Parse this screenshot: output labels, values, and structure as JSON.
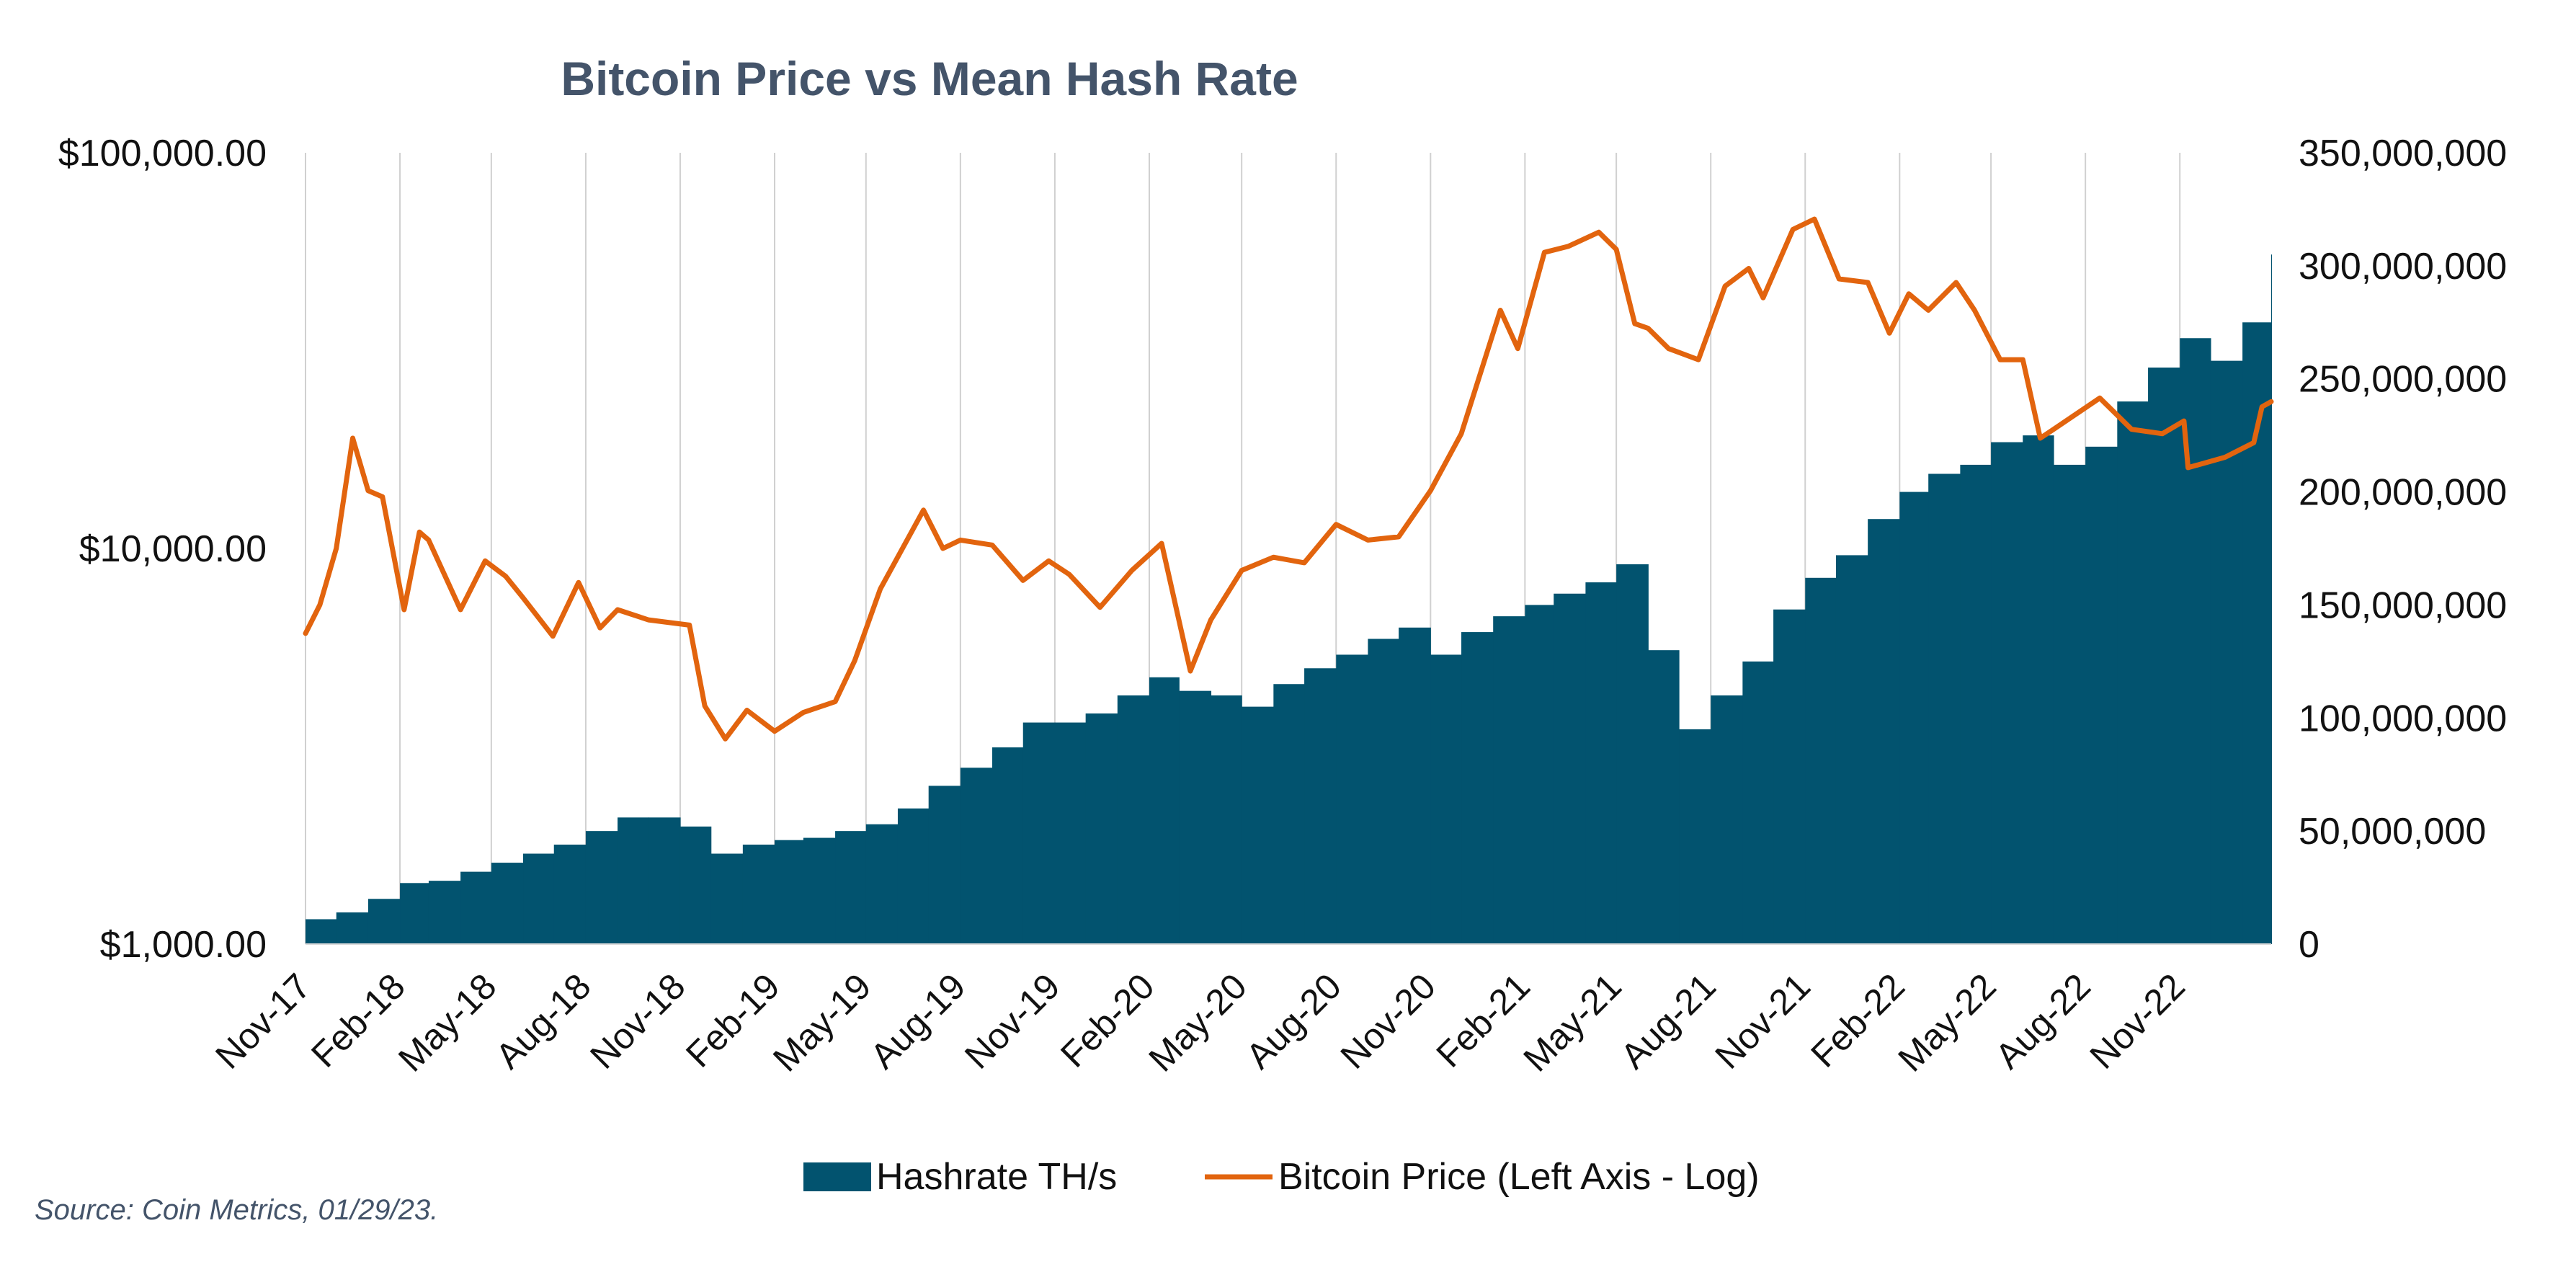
{
  "chart_data": {
    "type": "bar+line",
    "title": "Bitcoin Price vs Mean Hash Rate",
    "source": "Source: Coin Metrics, 01/29/23.",
    "x_ticks": [
      "Nov-17",
      "Feb-18",
      "May-18",
      "Aug-18",
      "Nov-18",
      "Feb-19",
      "May-19",
      "Aug-19",
      "Nov-19",
      "Feb-20",
      "May-20",
      "Aug-20",
      "Nov-20",
      "Feb-21",
      "May-21",
      "Aug-21",
      "Nov-21",
      "Feb-22",
      "May-22",
      "Aug-22",
      "Nov-22"
    ],
    "x_range": [
      "2017-11-01",
      "2023-01-29"
    ],
    "y_left": {
      "scale": "log",
      "range": [
        1000,
        100000
      ],
      "ticks": [
        1000,
        10000,
        100000
      ],
      "tick_labels": [
        "$1,000.00",
        "$10,000.00",
        "$100,000.00"
      ]
    },
    "y_right": {
      "scale": "linear",
      "range": [
        0,
        350000000
      ],
      "ticks": [
        0,
        50000000,
        100000000,
        150000000,
        200000000,
        250000000,
        300000000,
        350000000
      ],
      "tick_labels": [
        "0",
        "50,000,000",
        "100,000,000",
        "150,000,000",
        "200,000,000",
        "250,000,000",
        "300,000,000",
        "350,000,000"
      ]
    },
    "grid": "vertical",
    "legend_position": "bottom",
    "series": [
      {
        "name": "Hashrate TH/s",
        "type": "bar",
        "axis": "right",
        "color": "#02536f",
        "points": [
          [
            "2017-11-01",
            11000000
          ],
          [
            "2017-12-01",
            14000000
          ],
          [
            "2018-01-01",
            20000000
          ],
          [
            "2018-02-01",
            27000000
          ],
          [
            "2018-03-01",
            28000000
          ],
          [
            "2018-04-01",
            32000000
          ],
          [
            "2018-05-01",
            36000000
          ],
          [
            "2018-06-01",
            40000000
          ],
          [
            "2018-07-01",
            44000000
          ],
          [
            "2018-08-01",
            50000000
          ],
          [
            "2018-09-01",
            56000000
          ],
          [
            "2018-10-01",
            56000000
          ],
          [
            "2018-11-01",
            52000000
          ],
          [
            "2018-12-01",
            40000000
          ],
          [
            "2019-01-01",
            44000000
          ],
          [
            "2019-02-01",
            46000000
          ],
          [
            "2019-03-01",
            47000000
          ],
          [
            "2019-04-01",
            50000000
          ],
          [
            "2019-05-01",
            53000000
          ],
          [
            "2019-06-01",
            60000000
          ],
          [
            "2019-07-01",
            70000000
          ],
          [
            "2019-08-01",
            78000000
          ],
          [
            "2019-09-01",
            87000000
          ],
          [
            "2019-10-01",
            98000000
          ],
          [
            "2019-11-01",
            98000000
          ],
          [
            "2019-12-01",
            102000000
          ],
          [
            "2020-01-01",
            110000000
          ],
          [
            "2020-02-01",
            118000000
          ],
          [
            "2020-03-01",
            112000000
          ],
          [
            "2020-04-01",
            110000000
          ],
          [
            "2020-05-01",
            105000000
          ],
          [
            "2020-06-01",
            115000000
          ],
          [
            "2020-07-01",
            122000000
          ],
          [
            "2020-08-01",
            128000000
          ],
          [
            "2020-09-01",
            135000000
          ],
          [
            "2020-10-01",
            140000000
          ],
          [
            "2020-11-01",
            128000000
          ],
          [
            "2020-12-01",
            138000000
          ],
          [
            "2021-01-01",
            145000000
          ],
          [
            "2021-02-01",
            150000000
          ],
          [
            "2021-03-01",
            155000000
          ],
          [
            "2021-04-01",
            160000000
          ],
          [
            "2021-05-01",
            168000000
          ],
          [
            "2021-06-01",
            130000000
          ],
          [
            "2021-07-01",
            95000000
          ],
          [
            "2021-08-01",
            110000000
          ],
          [
            "2021-09-01",
            125000000
          ],
          [
            "2021-10-01",
            148000000
          ],
          [
            "2021-11-01",
            162000000
          ],
          [
            "2021-12-01",
            172000000
          ],
          [
            "2022-01-01",
            188000000
          ],
          [
            "2022-02-01",
            200000000
          ],
          [
            "2022-03-01",
            208000000
          ],
          [
            "2022-04-01",
            212000000
          ],
          [
            "2022-05-01",
            222000000
          ],
          [
            "2022-06-01",
            225000000
          ],
          [
            "2022-07-01",
            212000000
          ],
          [
            "2022-08-01",
            220000000
          ],
          [
            "2022-09-01",
            240000000
          ],
          [
            "2022-10-01",
            255000000
          ],
          [
            "2022-11-01",
            268000000
          ],
          [
            "2022-12-01",
            258000000
          ],
          [
            "2023-01-01",
            275000000
          ],
          [
            "2023-01-29",
            305000000
          ]
        ]
      },
      {
        "name": "Bitcoin Price (Left Axis - Log)",
        "type": "line",
        "axis": "left",
        "color": "#e2640e",
        "points": [
          [
            "2017-11-01",
            6100
          ],
          [
            "2017-11-15",
            7200
          ],
          [
            "2017-12-01",
            10000
          ],
          [
            "2017-12-17",
            19000
          ],
          [
            "2018-01-01",
            14000
          ],
          [
            "2018-01-15",
            13500
          ],
          [
            "2018-02-05",
            7000
          ],
          [
            "2018-02-20",
            11000
          ],
          [
            "2018-03-01",
            10500
          ],
          [
            "2018-04-01",
            7000
          ],
          [
            "2018-04-25",
            9300
          ],
          [
            "2018-05-15",
            8500
          ],
          [
            "2018-06-01",
            7500
          ],
          [
            "2018-06-30",
            6000
          ],
          [
            "2018-07-25",
            8200
          ],
          [
            "2018-08-15",
            6300
          ],
          [
            "2018-09-01",
            7000
          ],
          [
            "2018-10-01",
            6600
          ],
          [
            "2018-11-10",
            6400
          ],
          [
            "2018-11-25",
            4000
          ],
          [
            "2018-12-15",
            3300
          ],
          [
            "2019-01-05",
            3900
          ],
          [
            "2019-02-01",
            3450
          ],
          [
            "2019-03-01",
            3850
          ],
          [
            "2019-04-01",
            4100
          ],
          [
            "2019-04-20",
            5200
          ],
          [
            "2019-05-15",
            7900
          ],
          [
            "2019-06-26",
            12500
          ],
          [
            "2019-07-15",
            10000
          ],
          [
            "2019-08-01",
            10500
          ],
          [
            "2019-09-01",
            10200
          ],
          [
            "2019-10-01",
            8300
          ],
          [
            "2019-10-26",
            9300
          ],
          [
            "2019-11-15",
            8600
          ],
          [
            "2019-12-15",
            7100
          ],
          [
            "2020-01-15",
            8800
          ],
          [
            "2020-02-13",
            10300
          ],
          [
            "2020-03-12",
            4900
          ],
          [
            "2020-04-01",
            6600
          ],
          [
            "2020-05-01",
            8800
          ],
          [
            "2020-06-01",
            9500
          ],
          [
            "2020-07-01",
            9200
          ],
          [
            "2020-08-01",
            11500
          ],
          [
            "2020-09-01",
            10500
          ],
          [
            "2020-10-01",
            10700
          ],
          [
            "2020-11-01",
            14000
          ],
          [
            "2020-12-01",
            19500
          ],
          [
            "2021-01-08",
            40000
          ],
          [
            "2021-01-25",
            32000
          ],
          [
            "2021-02-20",
            56000
          ],
          [
            "2021-03-15",
            58000
          ],
          [
            "2021-04-14",
            63000
          ],
          [
            "2021-05-01",
            57000
          ],
          [
            "2021-05-19",
            37000
          ],
          [
            "2021-06-01",
            36000
          ],
          [
            "2021-06-21",
            32000
          ],
          [
            "2021-07-20",
            30000
          ],
          [
            "2021-08-15",
            46000
          ],
          [
            "2021-09-07",
            51000
          ],
          [
            "2021-09-21",
            43000
          ],
          [
            "2021-10-20",
            64000
          ],
          [
            "2021-11-10",
            68000
          ],
          [
            "2021-12-04",
            48000
          ],
          [
            "2022-01-01",
            47000
          ],
          [
            "2022-01-22",
            35000
          ],
          [
            "2022-02-10",
            44000
          ],
          [
            "2022-03-01",
            40000
          ],
          [
            "2022-03-28",
            47000
          ],
          [
            "2022-04-15",
            40000
          ],
          [
            "2022-05-10",
            30000
          ],
          [
            "2022-06-01",
            30000
          ],
          [
            "2022-06-18",
            19000
          ],
          [
            "2022-07-01",
            20000
          ],
          [
            "2022-08-15",
            24000
          ],
          [
            "2022-09-15",
            20000
          ],
          [
            "2022-10-15",
            19500
          ],
          [
            "2022-11-05",
            21000
          ],
          [
            "2022-11-09",
            16000
          ],
          [
            "2022-12-15",
            17000
          ],
          [
            "2023-01-12",
            18500
          ],
          [
            "2023-01-20",
            22800
          ],
          [
            "2023-01-29",
            23500
          ]
        ]
      }
    ]
  }
}
